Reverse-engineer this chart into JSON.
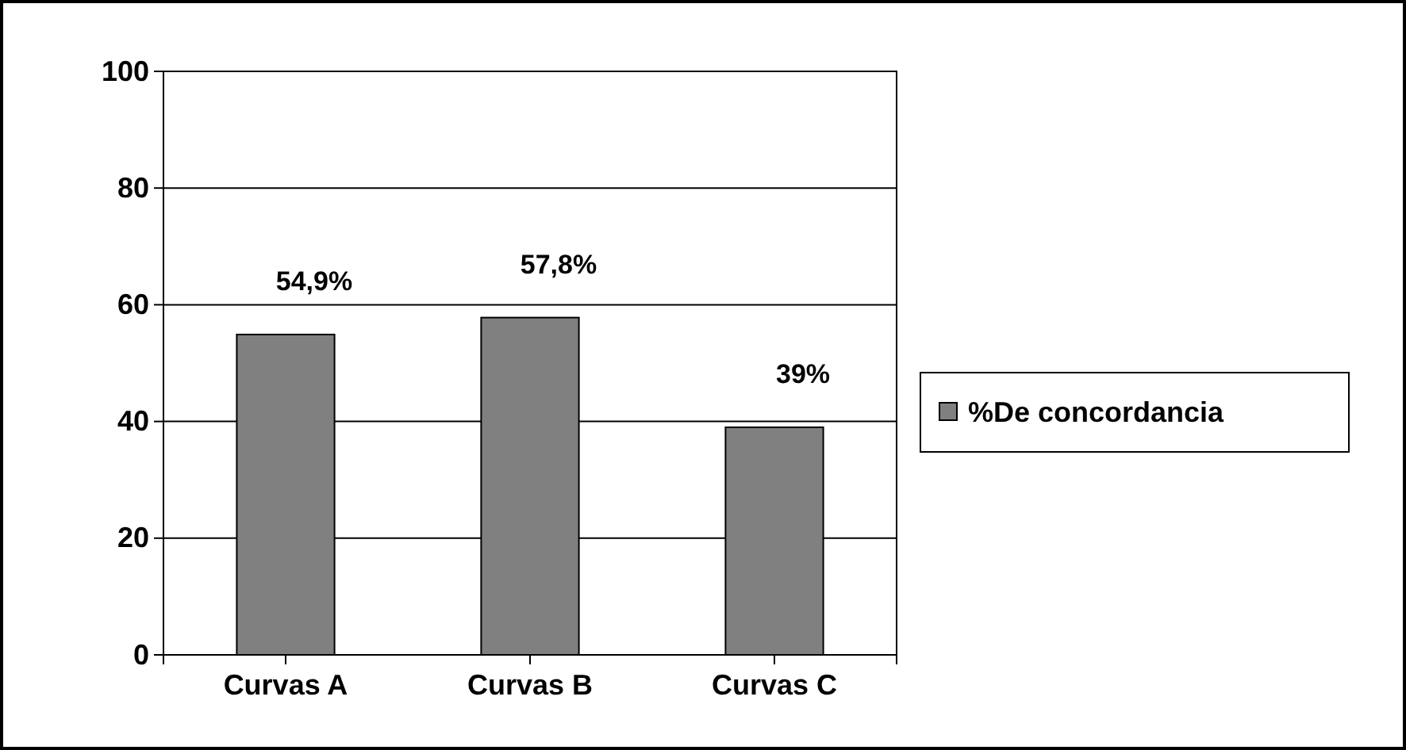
{
  "chart_data": {
    "type": "bar",
    "categories": [
      "Curvas A",
      "Curvas B",
      "Curvas C"
    ],
    "series": [
      {
        "name": "%De concordancia",
        "color": "#808080",
        "values": [
          54.9,
          57.8,
          39
        ],
        "value_labels": [
          "54,9%",
          "57,8%",
          "39%"
        ]
      }
    ],
    "ylim": [
      0,
      100
    ],
    "yticks": [
      0,
      20,
      40,
      60,
      80,
      100
    ],
    "grid": "y",
    "legend": "right"
  }
}
